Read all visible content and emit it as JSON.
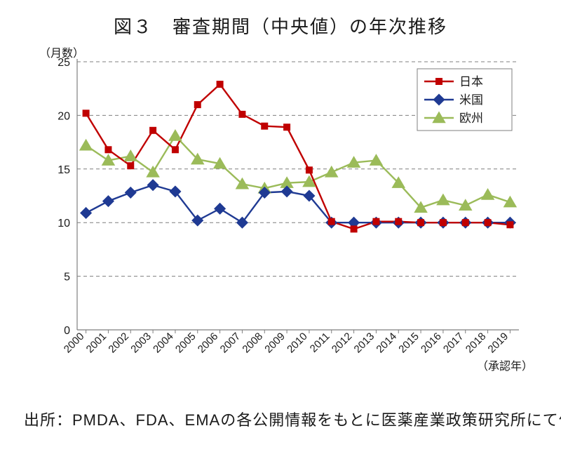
{
  "title": "図３　審査期間（中央値）の年次推移",
  "y_unit_label": "（月数）",
  "x_unit_label": "（承認年）",
  "source_text": "出所：PMDA、FDA、EMAの各公開情報をもとに医薬産業政策研究所にて作成",
  "chart": {
    "type": "line",
    "background_color": "#ffffff",
    "plot_border_color": "#7f7f7f",
    "grid_color": "#7f7f7f",
    "grid_dash": "5 4",
    "axis_line_width": 1.2,
    "ylim": [
      0,
      25
    ],
    "ytick_step": 5,
    "yticks": [
      0,
      5,
      10,
      15,
      20,
      25
    ],
    "x_categories": [
      "2000",
      "2001",
      "2002",
      "2003",
      "2004",
      "2005",
      "2006",
      "2007",
      "2008",
      "2009",
      "2010",
      "2011",
      "2012",
      "2013",
      "2014",
      "2015",
      "2016",
      "2017",
      "2018",
      "2019"
    ],
    "x_tick_rotation": -45,
    "label_fontsize": 16,
    "series": [
      {
        "name": "日本",
        "color": "#c00000",
        "marker": "square",
        "marker_size": 9,
        "line_width": 2.4,
        "values": [
          20.2,
          16.8,
          15.3,
          18.6,
          16.8,
          21.0,
          22.9,
          20.1,
          19.0,
          18.9,
          14.9,
          10.1,
          9.4,
          10.1,
          10.1,
          10.0,
          10.0,
          10.0,
          10.0,
          9.8
        ]
      },
      {
        "name": "米国",
        "color": "#1f3a93",
        "marker": "diamond",
        "marker_size": 9,
        "line_width": 2.4,
        "values": [
          10.9,
          12.0,
          12.8,
          13.5,
          12.9,
          10.2,
          11.3,
          10.0,
          12.8,
          12.9,
          12.5,
          10.0,
          10.0,
          10.0,
          10.0,
          10.0,
          10.0,
          10.0,
          10.0,
          10.0
        ]
      },
      {
        "name": "欧州",
        "color": "#9bbb59",
        "marker": "triangle",
        "marker_size": 11,
        "line_width": 2.4,
        "values": [
          17.2,
          15.8,
          16.2,
          14.7,
          18.1,
          15.9,
          15.5,
          13.6,
          13.2,
          13.7,
          13.8,
          14.7,
          15.6,
          15.8,
          13.7,
          11.4,
          12.1,
          11.6,
          12.6,
          11.9
        ]
      }
    ],
    "legend": {
      "position": "top-right",
      "border_color": "#7f7f7f",
      "background": "#ffffff"
    }
  }
}
